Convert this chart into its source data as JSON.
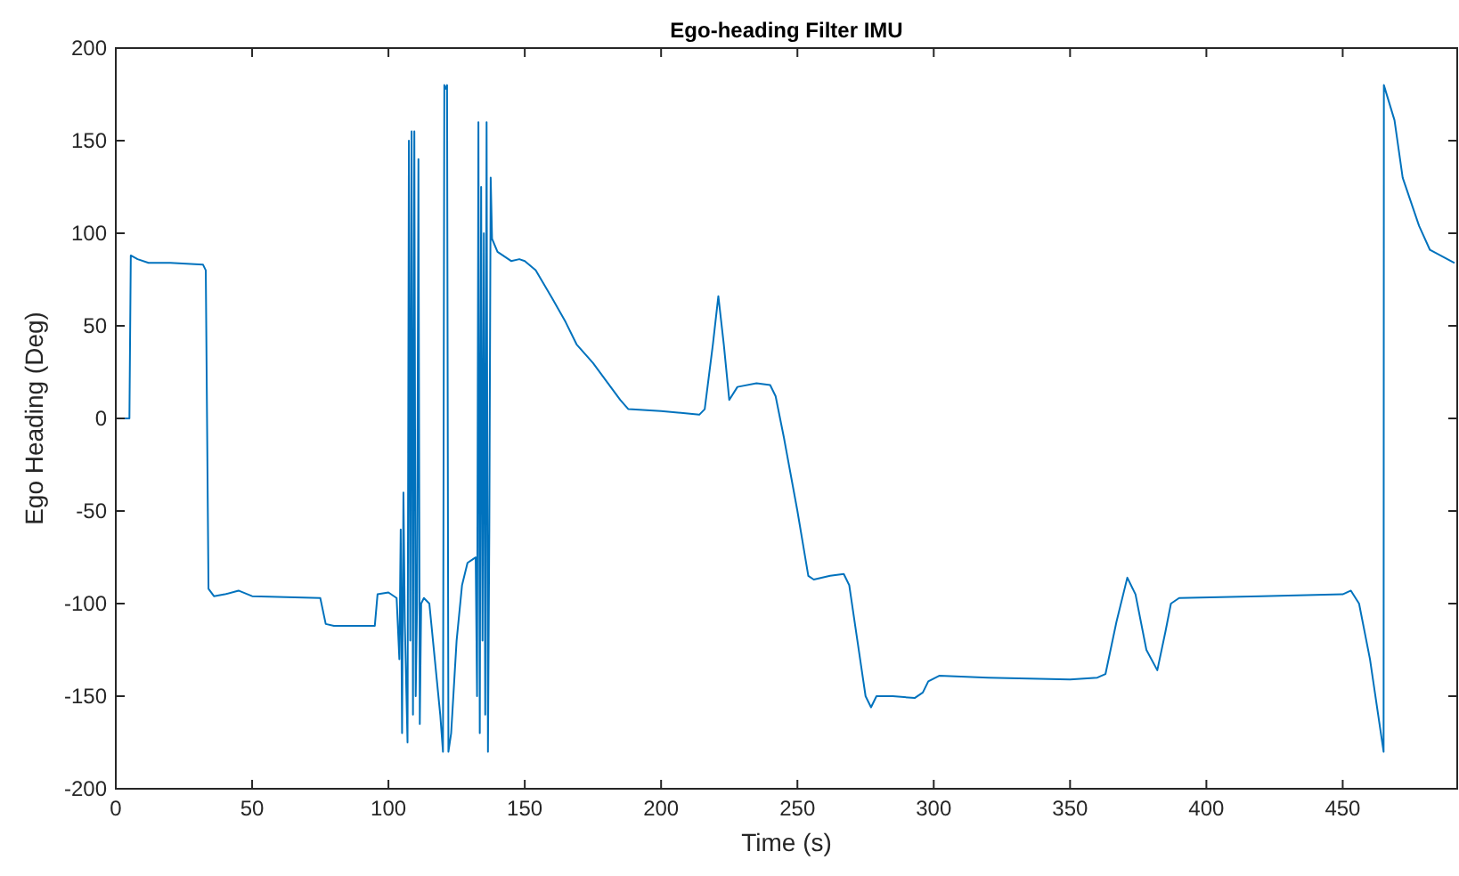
{
  "chart_data": {
    "type": "line",
    "title": "Ego-heading Filter IMU",
    "xlabel": "Time (s)",
    "ylabel": "Ego Heading (Deg)",
    "xlim": [
      0,
      492
    ],
    "ylim": [
      -200,
      200
    ],
    "xticks": [
      0,
      50,
      100,
      150,
      200,
      250,
      300,
      350,
      400,
      450
    ],
    "yticks": [
      -200,
      -150,
      -100,
      -50,
      0,
      50,
      100,
      150,
      200
    ],
    "grid": false,
    "series": [
      {
        "color": "#0072bd",
        "x": [
          0,
          5,
          5.5,
          8,
          12,
          20,
          32,
          33,
          34,
          36,
          40,
          45,
          50,
          75,
          77,
          80,
          95,
          96,
          100,
          103,
          104,
          104.5,
          105,
          105.5,
          106,
          107,
          107.5,
          108,
          108.5,
          109,
          109.5,
          110,
          110.5,
          111,
          111.5,
          112,
          113,
          115,
          117,
          119,
          120,
          120.5,
          121,
          121.5,
          122,
          123,
          125,
          127,
          129,
          131,
          132,
          132.5,
          133,
          133.5,
          134,
          134.5,
          135,
          135.5,
          136,
          136.5,
          137,
          137.5,
          138,
          140,
          145,
          148,
          150,
          154,
          160,
          165,
          169,
          175,
          180,
          185,
          188,
          200,
          214,
          216,
          219,
          221,
          223,
          225,
          228,
          235,
          240,
          242,
          245,
          250,
          254,
          256,
          262,
          267,
          269,
          272,
          275,
          277,
          279,
          285,
          293,
          296,
          298,
          302,
          320,
          350,
          360,
          363,
          367,
          371,
          374,
          378,
          382,
          385,
          387,
          390,
          420,
          450,
          453,
          456,
          460,
          463,
          465,
          465.1,
          469,
          472,
          478,
          482,
          491
        ],
        "values": [
          0,
          0,
          88,
          86,
          84,
          84,
          83,
          80,
          -92,
          -96,
          -95,
          -93,
          -96,
          -97,
          -111,
          -112,
          -112,
          -95,
          -94,
          -97,
          -130,
          -60,
          -170,
          -40,
          -110,
          -175,
          150,
          -120,
          155,
          -160,
          155,
          -150,
          -100,
          140,
          -165,
          -100,
          -97,
          -100,
          -130,
          -160,
          -180,
          180,
          178,
          180,
          -180,
          -170,
          -120,
          -90,
          -78,
          -76,
          -75,
          -150,
          160,
          -170,
          125,
          -120,
          100,
          -160,
          160,
          -180,
          -60,
          130,
          97,
          90,
          85,
          86,
          85,
          80,
          65,
          52,
          40,
          30,
          20,
          10,
          5,
          4,
          2,
          5,
          40,
          66,
          40,
          10,
          17,
          19,
          18,
          12,
          -10,
          -50,
          -85,
          -87,
          -85,
          -84,
          -90,
          -120,
          -150,
          -156,
          -150,
          -150,
          -151,
          -148,
          -142,
          -139,
          -140,
          -141,
          -140,
          -138,
          -110,
          -86,
          -95,
          -125,
          -136,
          -115,
          -100,
          -97,
          -96,
          -95,
          -93,
          -100,
          -130,
          -160,
          -180,
          180,
          161,
          130,
          104,
          91,
          84
        ]
      }
    ]
  }
}
